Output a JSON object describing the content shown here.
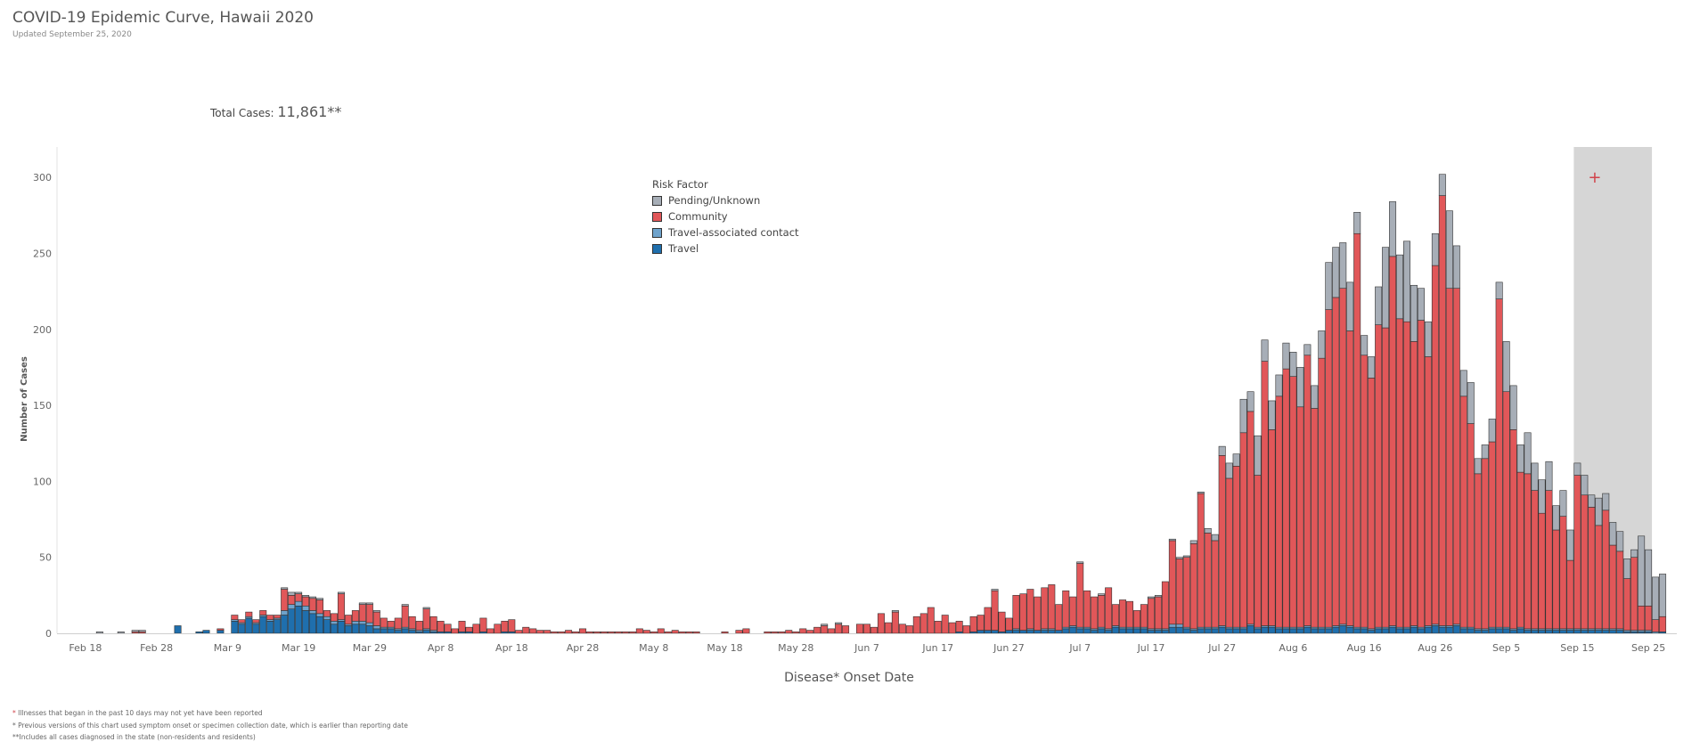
{
  "header": {
    "title": "COVID-19 Epidemic Curve, Hawaii 2020",
    "subtitle": "Updated September 25, 2020"
  },
  "summary": {
    "total_label": "Total Cases:",
    "total_value": "11,861**"
  },
  "legend": {
    "title": "Risk Factor",
    "items": [
      {
        "label": "Pending/Unknown",
        "color": "#a7aeb7"
      },
      {
        "label": "Community",
        "color": "#e15759"
      },
      {
        "label": "Travel-associated contact",
        "color": "#6fa3cc"
      },
      {
        "label": "Travel",
        "color": "#1f6fad"
      }
    ]
  },
  "shade_marker": "+",
  "footnotes": {
    "f1_mark": "*",
    "f1": " Illnesses that began in the past 10 days may not yet have been reported",
    "f2": "* Previous versions of this chart used symptom onset or specimen collection date, which is earlier than reporting date",
    "f3": "**Includes all cases diagnosed in the state (non-residents and residents)"
  },
  "colors": {
    "travel": "#1f6fad",
    "travel_contact": "#6fa3cc",
    "community": "#e15759",
    "pending": "#a7aeb7",
    "shade": "#d6d6d6",
    "marker": "#d1434b"
  },
  "chart_data": {
    "type": "bar",
    "stacked": true,
    "xlabel": "Disease* Onset Date",
    "ylabel": "Number of Cases",
    "ylim": [
      0,
      320
    ],
    "yticks": [
      0,
      50,
      100,
      150,
      200,
      250,
      300
    ],
    "x_start_date": "Feb 1",
    "xtick_labels": [
      "Feb 18",
      "Feb 28",
      "Mar 9",
      "Mar 19",
      "Mar 29",
      "Apr 8",
      "Apr 18",
      "Apr 28",
      "May 8",
      "May 18",
      "May 28",
      "Jun 7",
      "Jun 17",
      "Jun 27",
      "Jul 7",
      "Jul 17",
      "Jul 27",
      "Aug 6",
      "Aug 16",
      "Aug 26",
      "Sep 5",
      "Sep 15",
      "Sep 25"
    ],
    "xtick_days": [
      17,
      27,
      37,
      47,
      57,
      67,
      77,
      87,
      97,
      107,
      117,
      127,
      137,
      147,
      157,
      167,
      177,
      187,
      197,
      207,
      217,
      227,
      237
    ],
    "shaded_region": {
      "label": "Illnesses that began in the past 10 days may not yet have been reported",
      "from_day": 227,
      "to_day": 237
    },
    "grid": false,
    "legend_position": "top-center",
    "series_order": [
      "Travel",
      "Travel-associated contact",
      "Community",
      "Pending/Unknown"
    ],
    "days": [
      [
        19,
        0,
        0,
        0,
        1
      ],
      [
        22,
        0,
        0,
        0,
        1
      ],
      [
        24,
        0,
        0,
        1,
        1
      ],
      [
        25,
        0,
        0,
        1,
        1
      ],
      [
        30,
        5,
        0,
        0,
        0
      ],
      [
        33,
        1,
        0,
        0,
        0
      ],
      [
        34,
        2,
        0,
        0,
        0
      ],
      [
        36,
        2,
        0,
        1,
        0
      ],
      [
        38,
        8,
        1,
        3,
        0
      ],
      [
        39,
        6,
        1,
        2,
        0
      ],
      [
        40,
        10,
        1,
        3,
        0
      ],
      [
        41,
        6,
        1,
        2,
        0
      ],
      [
        42,
        11,
        1,
        3,
        0
      ],
      [
        43,
        8,
        1,
        3,
        0
      ],
      [
        44,
        9,
        1,
        2,
        0
      ],
      [
        45,
        12,
        3,
        14,
        1
      ],
      [
        46,
        16,
        3,
        6,
        2
      ],
      [
        47,
        18,
        3,
        5,
        1
      ],
      [
        48,
        15,
        3,
        6,
        1
      ],
      [
        49,
        13,
        2,
        8,
        1
      ],
      [
        50,
        11,
        2,
        9,
        1
      ],
      [
        51,
        9,
        2,
        4,
        0
      ],
      [
        52,
        6,
        2,
        5,
        0
      ],
      [
        53,
        8,
        1,
        17,
        1
      ],
      [
        54,
        5,
        1,
        6,
        0
      ],
      [
        55,
        6,
        2,
        7,
        0
      ],
      [
        56,
        6,
        2,
        11,
        1
      ],
      [
        57,
        5,
        2,
        12,
        1
      ],
      [
        58,
        3,
        2,
        9,
        1
      ],
      [
        59,
        3,
        1,
        6,
        0
      ],
      [
        60,
        3,
        1,
        4,
        0
      ],
      [
        61,
        2,
        1,
        7,
        0
      ],
      [
        62,
        3,
        1,
        14,
        1
      ],
      [
        63,
        2,
        1,
        8,
        0
      ],
      [
        64,
        1,
        1,
        6,
        0
      ],
      [
        65,
        2,
        1,
        13,
        1
      ],
      [
        66,
        1,
        1,
        9,
        0
      ],
      [
        67,
        1,
        0,
        7,
        0
      ],
      [
        68,
        1,
        0,
        5,
        0
      ],
      [
        69,
        0,
        0,
        3,
        0
      ],
      [
        70,
        1,
        0,
        7,
        0
      ],
      [
        71,
        1,
        0,
        3,
        0
      ],
      [
        72,
        0,
        0,
        6,
        0
      ],
      [
        73,
        1,
        0,
        9,
        0
      ],
      [
        74,
        0,
        0,
        3,
        0
      ],
      [
        75,
        0,
        0,
        6,
        0
      ],
      [
        76,
        1,
        0,
        7,
        0
      ],
      [
        77,
        1,
        0,
        8,
        0
      ],
      [
        78,
        0,
        0,
        2,
        0
      ],
      [
        79,
        0,
        0,
        4,
        0
      ],
      [
        80,
        0,
        0,
        3,
        0
      ],
      [
        81,
        0,
        0,
        2,
        0
      ],
      [
        82,
        0,
        0,
        2,
        0
      ],
      [
        83,
        0,
        0,
        1,
        0
      ],
      [
        84,
        0,
        0,
        1,
        0
      ],
      [
        85,
        0,
        0,
        2,
        0
      ],
      [
        86,
        0,
        0,
        1,
        0
      ],
      [
        87,
        0,
        0,
        3,
        0
      ],
      [
        88,
        0,
        0,
        1,
        0
      ],
      [
        89,
        0,
        0,
        1,
        0
      ],
      [
        90,
        0,
        0,
        1,
        0
      ],
      [
        91,
        0,
        0,
        1,
        0
      ],
      [
        92,
        0,
        0,
        1,
        0
      ],
      [
        93,
        0,
        0,
        1,
        0
      ],
      [
        94,
        0,
        0,
        1,
        0
      ],
      [
        95,
        0,
        0,
        3,
        0
      ],
      [
        96,
        0,
        0,
        2,
        0
      ],
      [
        97,
        0,
        0,
        1,
        0
      ],
      [
        98,
        0,
        0,
        3,
        0
      ],
      [
        99,
        0,
        0,
        1,
        0
      ],
      [
        100,
        0,
        0,
        2,
        0
      ],
      [
        101,
        0,
        0,
        1,
        0
      ],
      [
        102,
        0,
        0,
        1,
        0
      ],
      [
        103,
        0,
        0,
        1,
        0
      ],
      [
        107,
        0,
        0,
        1,
        0
      ],
      [
        109,
        0,
        0,
        2,
        0
      ],
      [
        110,
        0,
        0,
        3,
        0
      ],
      [
        113,
        0,
        0,
        1,
        0
      ],
      [
        114,
        0,
        0,
        1,
        0
      ],
      [
        115,
        0,
        0,
        1,
        0
      ],
      [
        116,
        0,
        0,
        2,
        0
      ],
      [
        117,
        0,
        0,
        1,
        0
      ],
      [
        118,
        0,
        0,
        3,
        0
      ],
      [
        119,
        0,
        0,
        2,
        0
      ],
      [
        120,
        0,
        0,
        4,
        0
      ],
      [
        121,
        0,
        0,
        5,
        1
      ],
      [
        122,
        0,
        0,
        3,
        0
      ],
      [
        123,
        0,
        0,
        6,
        1
      ],
      [
        124,
        0,
        0,
        5,
        0
      ],
      [
        126,
        0,
        0,
        6,
        0
      ],
      [
        127,
        0,
        0,
        6,
        0
      ],
      [
        128,
        0,
        0,
        4,
        0
      ],
      [
        129,
        0,
        0,
        13,
        0
      ],
      [
        130,
        0,
        0,
        7,
        0
      ],
      [
        131,
        0,
        0,
        14,
        1
      ],
      [
        132,
        0,
        0,
        6,
        0
      ],
      [
        133,
        0,
        0,
        5,
        0
      ],
      [
        134,
        0,
        0,
        11,
        0
      ],
      [
        135,
        0,
        0,
        13,
        0
      ],
      [
        136,
        0,
        0,
        17,
        0
      ],
      [
        137,
        0,
        0,
        8,
        0
      ],
      [
        138,
        0,
        0,
        12,
        0
      ],
      [
        139,
        0,
        0,
        7,
        0
      ],
      [
        140,
        1,
        0,
        7,
        0
      ],
      [
        141,
        0,
        0,
        5,
        0
      ],
      [
        142,
        1,
        0,
        10,
        0
      ],
      [
        143,
        2,
        0,
        10,
        0
      ],
      [
        144,
        2,
        0,
        15,
        0
      ],
      [
        145,
        2,
        0,
        26,
        1
      ],
      [
        146,
        1,
        0,
        13,
        0
      ],
      [
        147,
        2,
        0,
        8,
        0
      ],
      [
        148,
        2,
        1,
        22,
        0
      ],
      [
        149,
        2,
        0,
        24,
        0
      ],
      [
        150,
        2,
        1,
        26,
        0
      ],
      [
        151,
        2,
        0,
        22,
        0
      ],
      [
        152,
        2,
        1,
        27,
        0
      ],
      [
        153,
        2,
        1,
        29,
        0
      ],
      [
        154,
        2,
        0,
        17,
        0
      ],
      [
        155,
        3,
        1,
        24,
        0
      ],
      [
        156,
        4,
        1,
        19,
        0
      ],
      [
        157,
        3,
        1,
        42,
        1
      ],
      [
        158,
        3,
        1,
        24,
        0
      ],
      [
        159,
        2,
        1,
        21,
        0
      ],
      [
        160,
        3,
        1,
        21,
        1
      ],
      [
        161,
        2,
        1,
        27,
        0
      ],
      [
        162,
        4,
        1,
        14,
        0
      ],
      [
        163,
        3,
        1,
        18,
        0
      ],
      [
        164,
        3,
        1,
        17,
        0
      ],
      [
        165,
        3,
        1,
        11,
        0
      ],
      [
        166,
        3,
        1,
        15,
        0
      ],
      [
        167,
        2,
        1,
        20,
        1
      ],
      [
        168,
        2,
        1,
        21,
        1
      ],
      [
        169,
        2,
        1,
        31,
        0
      ],
      [
        170,
        4,
        2,
        55,
        1
      ],
      [
        171,
        4,
        2,
        43,
        1
      ],
      [
        172,
        3,
        1,
        46,
        1
      ],
      [
        173,
        2,
        1,
        56,
        2
      ],
      [
        174,
        3,
        1,
        88,
        1
      ],
      [
        175,
        3,
        1,
        62,
        3
      ],
      [
        176,
        3,
        1,
        57,
        4
      ],
      [
        177,
        4,
        1,
        112,
        6
      ],
      [
        178,
        3,
        1,
        98,
        10
      ],
      [
        179,
        3,
        1,
        106,
        8
      ],
      [
        180,
        3,
        1,
        128,
        22
      ],
      [
        181,
        5,
        1,
        140,
        13
      ],
      [
        182,
        3,
        1,
        100,
        26
      ],
      [
        183,
        4,
        1,
        174,
        14
      ],
      [
        184,
        4,
        1,
        129,
        19
      ],
      [
        185,
        3,
        1,
        152,
        14
      ],
      [
        186,
        3,
        1,
        170,
        17
      ],
      [
        187,
        3,
        1,
        165,
        16
      ],
      [
        188,
        3,
        1,
        145,
        26
      ],
      [
        189,
        4,
        1,
        178,
        7
      ],
      [
        190,
        3,
        1,
        144,
        15
      ],
      [
        191,
        3,
        1,
        177,
        18
      ],
      [
        192,
        3,
        1,
        209,
        31
      ],
      [
        193,
        4,
        1,
        216,
        33
      ],
      [
        194,
        5,
        1,
        221,
        30
      ],
      [
        195,
        4,
        1,
        194,
        32
      ],
      [
        196,
        3,
        1,
        259,
        14
      ],
      [
        197,
        3,
        1,
        179,
        13
      ],
      [
        198,
        2,
        1,
        165,
        14
      ],
      [
        199,
        3,
        1,
        199,
        25
      ],
      [
        200,
        3,
        1,
        197,
        53
      ],
      [
        201,
        4,
        1,
        243,
        36
      ],
      [
        202,
        3,
        1,
        203,
        42
      ],
      [
        203,
        3,
        1,
        201,
        53
      ],
      [
        204,
        4,
        1,
        187,
        37
      ],
      [
        205,
        3,
        1,
        202,
        21
      ],
      [
        206,
        4,
        1,
        177,
        23
      ],
      [
        207,
        5,
        1,
        236,
        21
      ],
      [
        208,
        4,
        1,
        283,
        14
      ],
      [
        209,
        4,
        1,
        222,
        51
      ],
      [
        210,
        5,
        1,
        221,
        28
      ],
      [
        211,
        3,
        1,
        152,
        17
      ],
      [
        212,
        3,
        1,
        134,
        27
      ],
      [
        213,
        2,
        1,
        102,
        10
      ],
      [
        214,
        2,
        1,
        112,
        9
      ],
      [
        215,
        3,
        1,
        122,
        15
      ],
      [
        216,
        3,
        1,
        216,
        11
      ],
      [
        217,
        3,
        1,
        155,
        33
      ],
      [
        218,
        2,
        1,
        131,
        29
      ],
      [
        219,
        3,
        1,
        102,
        18
      ],
      [
        220,
        2,
        1,
        102,
        27
      ],
      [
        221,
        2,
        1,
        91,
        18
      ],
      [
        222,
        2,
        1,
        76,
        22
      ],
      [
        223,
        2,
        1,
        91,
        19
      ],
      [
        224,
        2,
        1,
        65,
        16
      ],
      [
        225,
        2,
        1,
        74,
        17
      ],
      [
        226,
        2,
        1,
        45,
        20
      ],
      [
        227,
        2,
        1,
        101,
        8
      ],
      [
        228,
        2,
        1,
        88,
        13
      ],
      [
        229,
        2,
        1,
        80,
        8
      ],
      [
        230,
        2,
        1,
        68,
        18
      ],
      [
        231,
        2,
        1,
        78,
        11
      ],
      [
        232,
        2,
        1,
        55,
        15
      ],
      [
        233,
        2,
        1,
        51,
        13
      ],
      [
        234,
        1,
        1,
        34,
        13
      ],
      [
        235,
        1,
        1,
        48,
        5
      ],
      [
        236,
        1,
        1,
        16,
        46
      ],
      [
        237,
        1,
        1,
        16,
        37
      ],
      [
        238,
        0,
        1,
        8,
        28
      ],
      [
        239,
        1,
        0,
        10,
        28
      ]
    ]
  }
}
